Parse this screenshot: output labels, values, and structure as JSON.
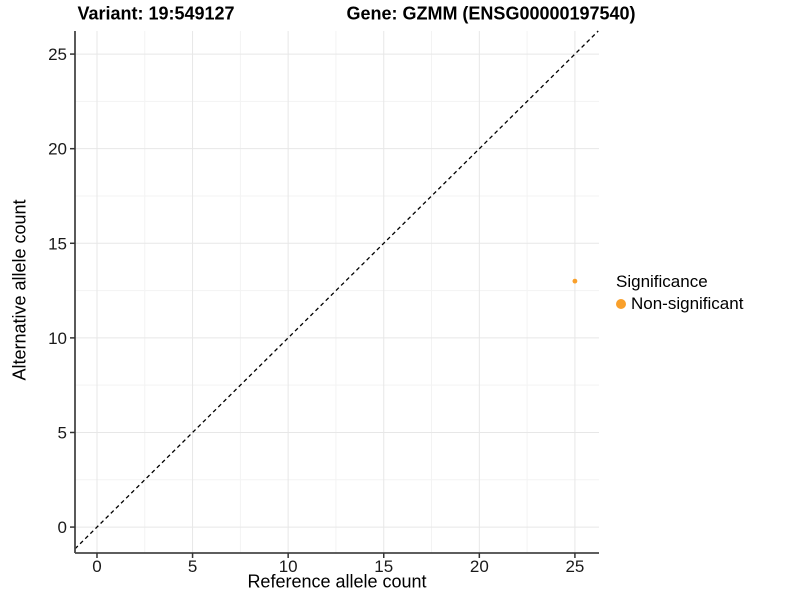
{
  "colors": {
    "background": "#ffffff",
    "point_orange": "#F9A02B",
    "axis_line": "#474747",
    "tick_mark": "#333333",
    "tick_label": "#1a1a1a",
    "grid_major": "#e7e7e7",
    "grid_minor": "#f3f3f3",
    "reference_line": "#000000",
    "text": "#000000"
  },
  "chart_data": {
    "type": "scatter",
    "title_left": "Variant: 19:549127",
    "title_right": "Gene: GZMM (ENSG00000197540)",
    "xlabel": "Reference allele count",
    "ylabel": "Alternative allele count",
    "xlim": [
      -1.15,
      26.26
    ],
    "ylim": [
      -1.37,
      26.22
    ],
    "x_major_ticks": [
      0,
      5,
      10,
      15,
      20,
      25
    ],
    "y_major_ticks": [
      0,
      5,
      10,
      15,
      20,
      25
    ],
    "x_minor_ticks": [
      2.5,
      7.5,
      12.5,
      17.5,
      22.5
    ],
    "y_minor_ticks": [
      2.5,
      7.5,
      12.5,
      17.5,
      22.5
    ],
    "grid": true,
    "points": [
      {
        "x": 25,
        "y": 13,
        "series": "Non-significant"
      }
    ],
    "reference_line": {
      "style": "dashed",
      "slope": 1,
      "intercept": 0
    },
    "legend": {
      "title": "Significance",
      "position": "right",
      "items": [
        {
          "label": "Non-significant",
          "color": "#F9A02B"
        }
      ]
    }
  }
}
